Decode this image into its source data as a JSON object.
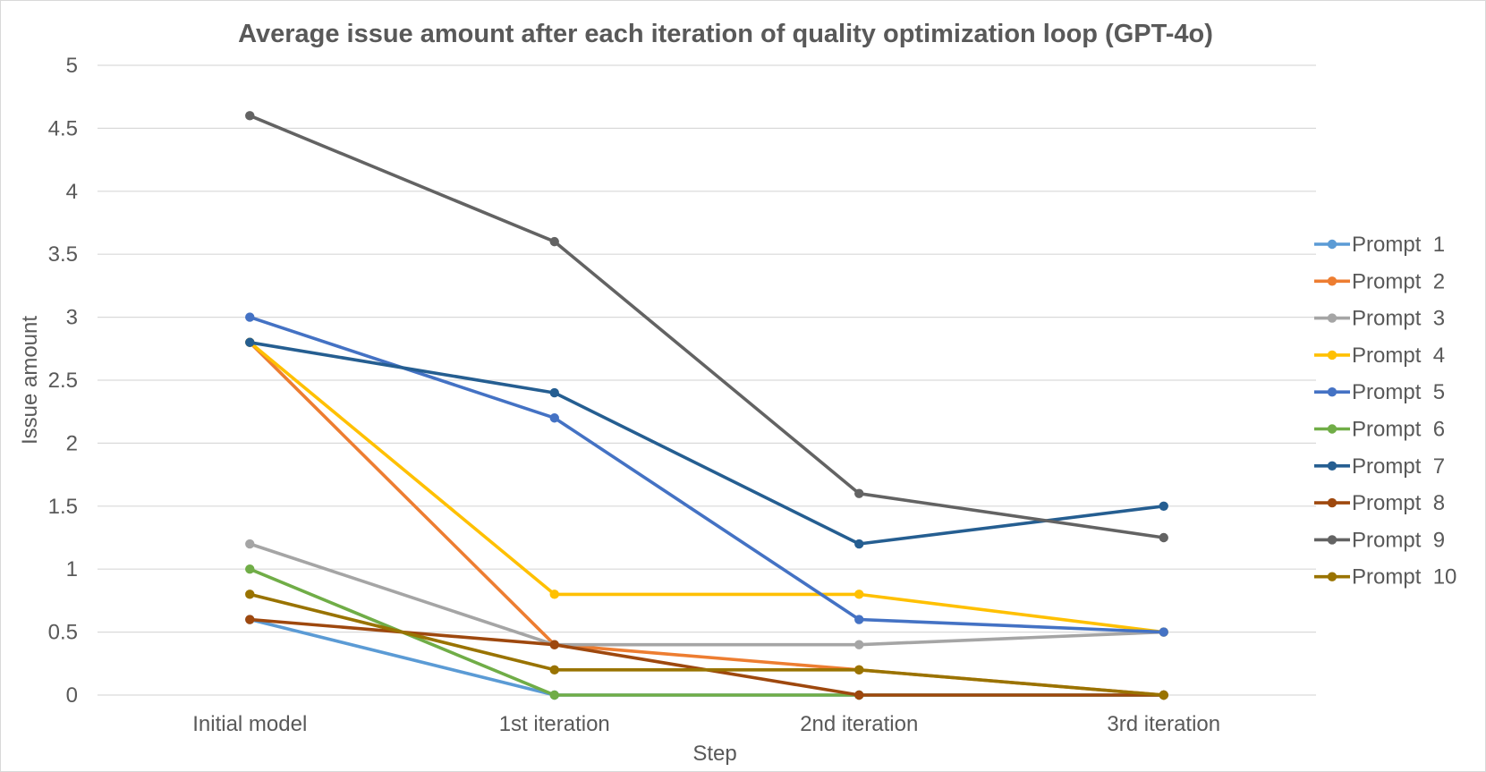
{
  "chart_data": {
    "type": "line",
    "title": "Average issue amount after each iteration of quality optimization loop (GPT-4o)",
    "xlabel": "Step",
    "ylabel": "Issue  amount",
    "categories": [
      "Initial model",
      "1st iteration",
      "2nd iteration",
      "3rd iteration"
    ],
    "ylim": [
      0,
      5
    ],
    "yticks": [
      "0",
      "0.5",
      "1",
      "1.5",
      "2",
      "2.5",
      "3",
      "3.5",
      "4",
      "4.5",
      "5"
    ],
    "grid": "horizontal",
    "legend_position": "right",
    "series": [
      {
        "name": "Prompt  1",
        "color": "#5b9bd5",
        "values": [
          0.6,
          0,
          0,
          0
        ]
      },
      {
        "name": "Prompt  2",
        "color": "#ed7d31",
        "values": [
          2.8,
          0.4,
          0.2,
          0
        ]
      },
      {
        "name": "Prompt  3",
        "color": "#a5a5a5",
        "values": [
          1.2,
          0.4,
          0.4,
          0.5
        ]
      },
      {
        "name": "Prompt  4",
        "color": "#ffc000",
        "values": [
          2.8,
          0.8,
          0.8,
          0.5
        ]
      },
      {
        "name": "Prompt  5",
        "color": "#4472c4",
        "values": [
          3.0,
          2.2,
          0.6,
          0.5
        ]
      },
      {
        "name": "Prompt  6",
        "color": "#70ad47",
        "values": [
          1.0,
          0,
          0,
          0
        ]
      },
      {
        "name": "Prompt  7",
        "color": "#255e91",
        "values": [
          2.8,
          2.4,
          1.2,
          1.5
        ]
      },
      {
        "name": "Prompt  8",
        "color": "#9e480e",
        "values": [
          0.6,
          0.4,
          0,
          0
        ]
      },
      {
        "name": "Prompt  9",
        "color": "#636363",
        "values": [
          4.6,
          3.6,
          1.6,
          1.25
        ]
      },
      {
        "name": "Prompt  10",
        "color": "#997300",
        "values": [
          0.8,
          0.2,
          0.2,
          0
        ]
      }
    ]
  }
}
